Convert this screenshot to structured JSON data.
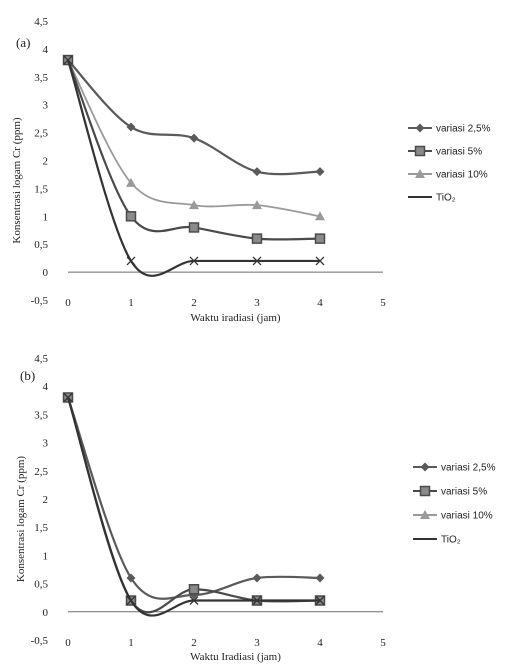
{
  "chart_data": [
    {
      "type": "line",
      "panel_label": "(a)",
      "xlabel": "Waktu iradiasi (jam)",
      "ylabel": "Konsentrasi logam Cr (ppm)",
      "xlim": [
        0,
        5
      ],
      "ylim": [
        -0.5,
        4.5
      ],
      "x_ticks": [
        "0",
        "1",
        "2",
        "3",
        "4",
        "5"
      ],
      "y_ticks": [
        "-0,5",
        "0",
        "0,5",
        "1",
        "1,5",
        "2",
        "2,5",
        "3",
        "3,5",
        "4",
        "4,5"
      ],
      "grid": false,
      "legend_position": "right",
      "series": [
        {
          "name": "variasi 2,5%",
          "x": [
            0,
            1,
            2,
            3,
            4
          ],
          "values": [
            3.8,
            2.6,
            2.4,
            1.8,
            1.8
          ],
          "color": "#5a5a5a",
          "marker": "diamond"
        },
        {
          "name": "variasi 5%",
          "x": [
            0,
            1,
            2,
            3,
            4
          ],
          "values": [
            3.8,
            1.0,
            0.8,
            0.6,
            0.6
          ],
          "color": "#4a4a4a",
          "marker": "square"
        },
        {
          "name": "variasi 10%",
          "x": [
            0,
            1,
            2,
            3,
            4
          ],
          "values": [
            3.8,
            1.6,
            1.2,
            1.2,
            1.0
          ],
          "color": "#9a9a9a",
          "marker": "triangle"
        },
        {
          "name": "TiO₂",
          "x": [
            0,
            1,
            2,
            3,
            4
          ],
          "values": [
            3.8,
            0.2,
            0.2,
            0.2,
            0.2
          ],
          "color": "#333333",
          "marker": "x"
        }
      ]
    },
    {
      "type": "line",
      "panel_label": "(b)",
      "xlabel": "Waktu Iradiasi (jam)",
      "ylabel": "Konsentrasi logam Cr (ppm)",
      "xlim": [
        0,
        5
      ],
      "ylim": [
        -0.5,
        4.5
      ],
      "x_ticks": [
        "0",
        "1",
        "2",
        "3",
        "4",
        "5"
      ],
      "y_ticks": [
        "-0,5",
        "0",
        "0,5",
        "1",
        "1,5",
        "2",
        "2,5",
        "3",
        "3,5",
        "4",
        "4,5"
      ],
      "grid": false,
      "legend_position": "right",
      "series": [
        {
          "name": "variasi 2,5%",
          "x": [
            0,
            1,
            2,
            3,
            4
          ],
          "values": [
            3.8,
            0.6,
            0.3,
            0.6,
            0.6
          ],
          "color": "#5a5a5a",
          "marker": "diamond"
        },
        {
          "name": "variasi 5%",
          "x": [
            0,
            1,
            2,
            3,
            4
          ],
          "values": [
            3.8,
            0.2,
            0.4,
            0.2,
            0.2
          ],
          "color": "#4a4a4a",
          "marker": "square"
        },
        {
          "name": "variasi 10%",
          "x": [
            0,
            1,
            2,
            3,
            4
          ],
          "values": [
            3.8,
            0.2,
            0.4,
            0.2,
            0.2
          ],
          "color": "#9a9a9a",
          "marker": "triangle"
        },
        {
          "name": "TiO₂",
          "x": [
            0,
            1,
            2,
            3,
            4
          ],
          "values": [
            3.8,
            0.2,
            0.2,
            0.2,
            0.2
          ],
          "color": "#333333",
          "marker": "x"
        }
      ]
    }
  ]
}
